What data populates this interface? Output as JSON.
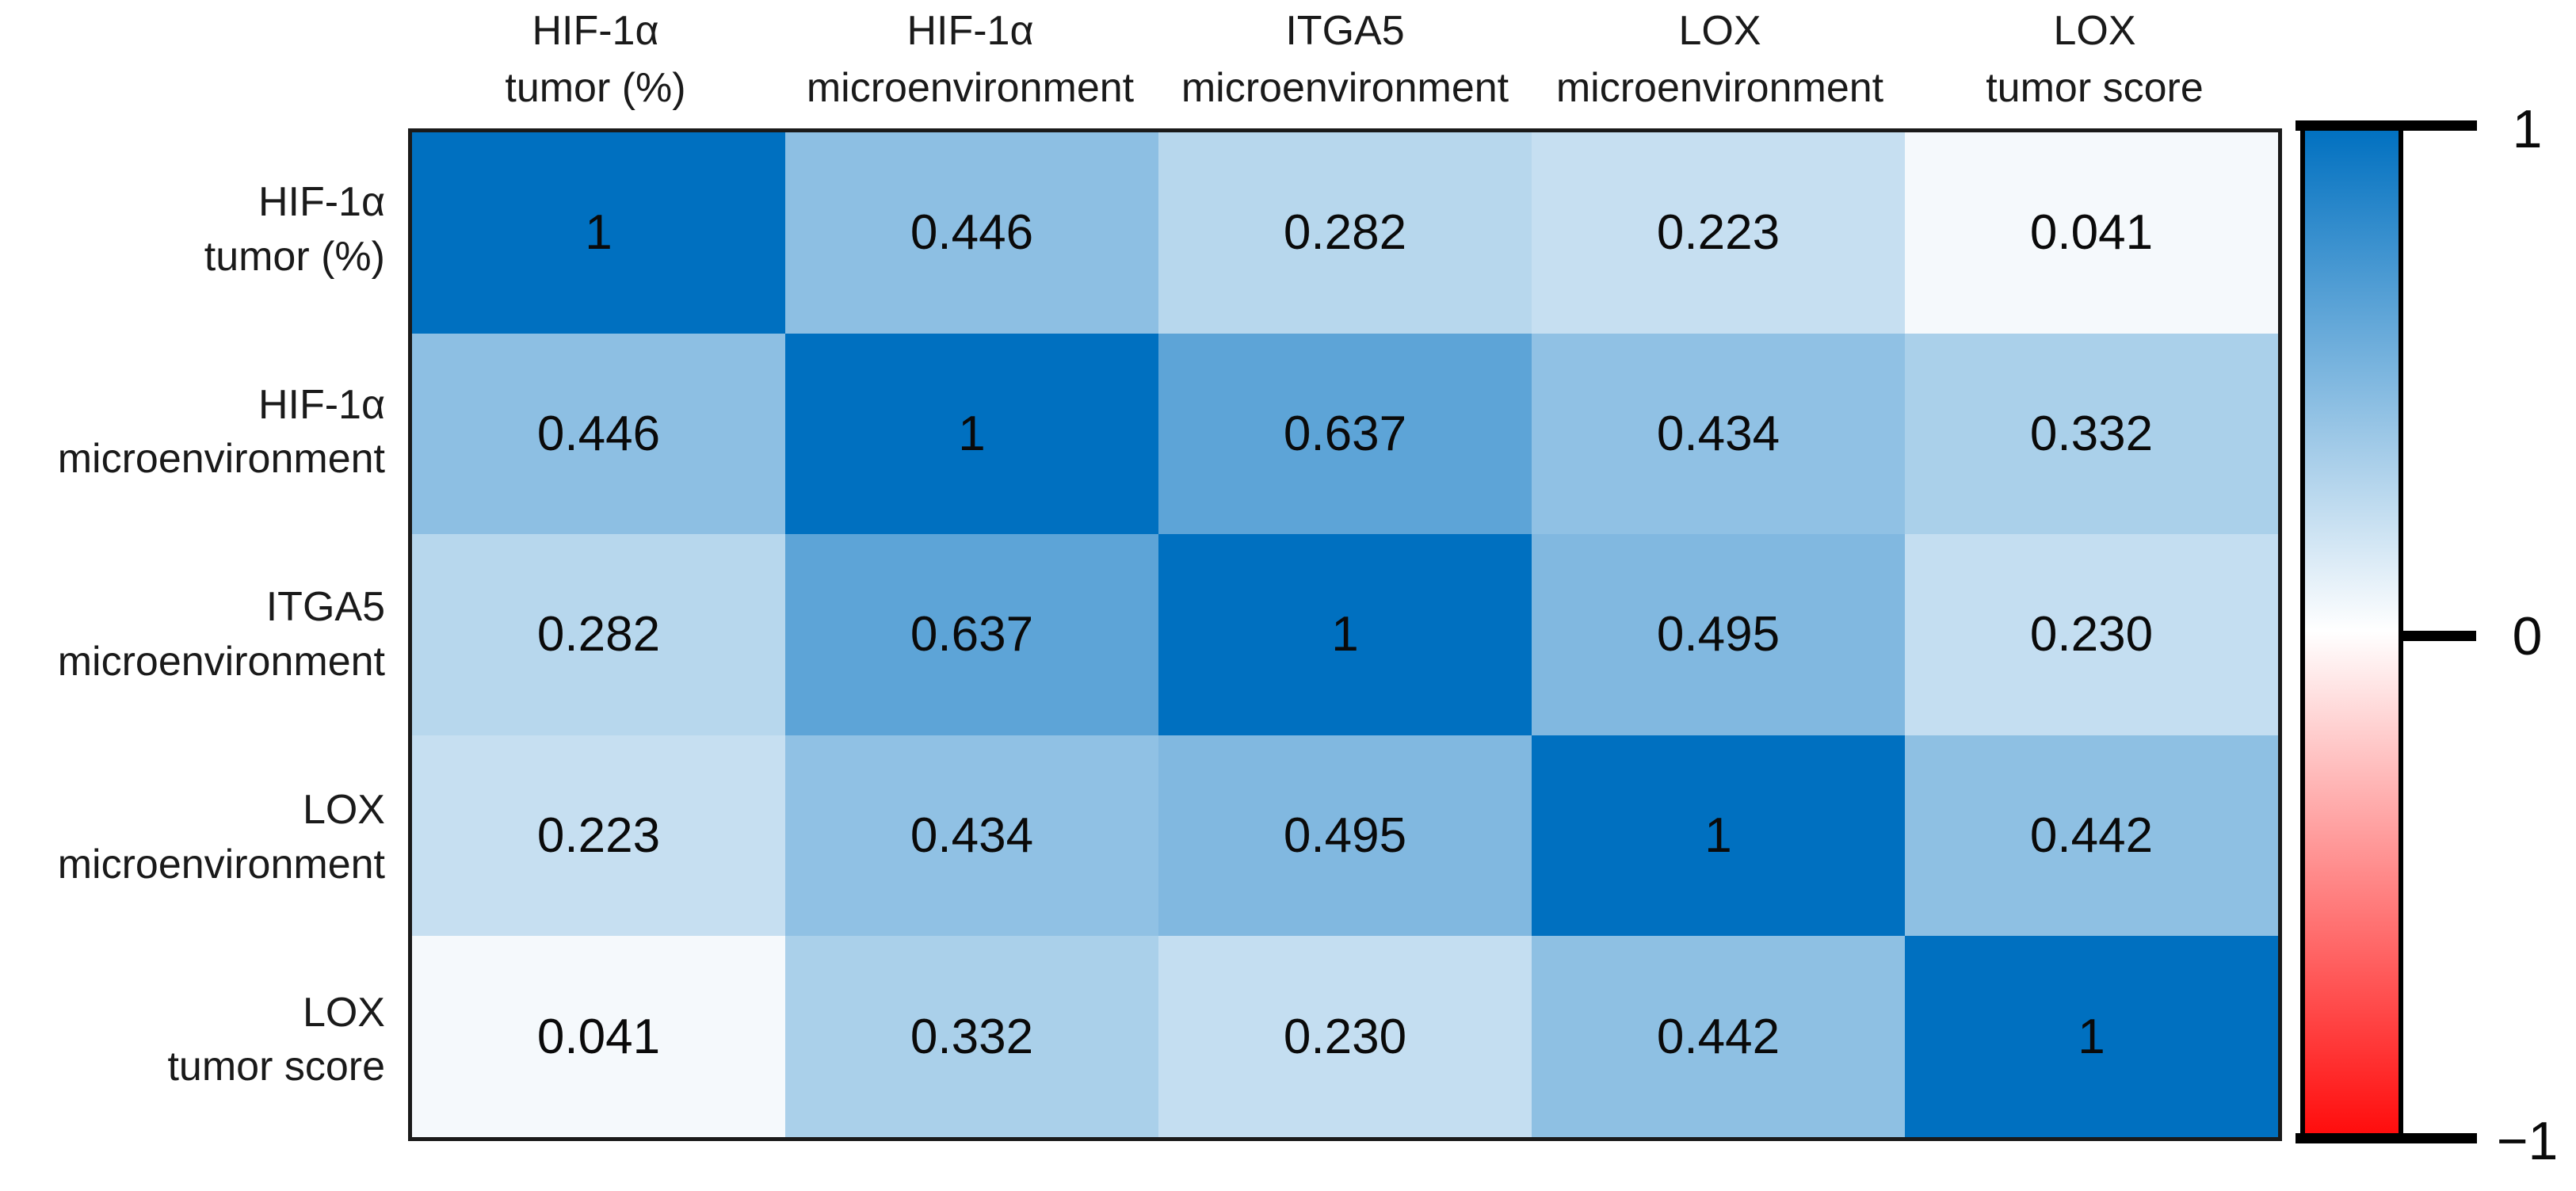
{
  "chart_data": {
    "type": "heatmap",
    "title": "",
    "description": "Correlation matrix heatmap, blue positive scale with diverging blue-white-red colorbar",
    "col_labels": [
      "HIF-1α\ntumor  (%)",
      "HIF-1α\nmicroenvironment",
      "ITGA5\nmicroenvironment",
      "LOX\nmicroenvironment",
      "LOX\ntumor score"
    ],
    "row_labels": [
      "HIF-1α\ntumor (%)",
      "HIF-1α\nmicroenvironment",
      "ITGA5\nmicroenvironment",
      "LOX\nmicroenvironment",
      "LOX\ntumor score"
    ],
    "values": [
      [
        1,
        0.446,
        0.282,
        0.223,
        0.041
      ],
      [
        0.446,
        1,
        0.637,
        0.434,
        0.332
      ],
      [
        0.282,
        0.637,
        1,
        0.495,
        0.23
      ],
      [
        0.223,
        0.434,
        0.495,
        1,
        0.442
      ],
      [
        0.041,
        0.332,
        0.23,
        0.442,
        1
      ]
    ],
    "cell_text": [
      [
        "1",
        "0.446",
        "0.282",
        "0.223",
        "0.041"
      ],
      [
        "0.446",
        "1",
        "0.637",
        "0.434",
        "0.332"
      ],
      [
        "0.282",
        "0.637",
        "1",
        "0.495",
        "0.230"
      ],
      [
        "0.223",
        "0.434",
        "0.495",
        "1",
        "0.442"
      ],
      [
        "0.041",
        "0.332",
        "0.230",
        "0.442",
        "1"
      ]
    ],
    "colorbar": {
      "range": [
        -1,
        1
      ],
      "ticks": {
        "max": "1",
        "mid": "0",
        "min": "−1"
      },
      "max_color": "#0070C0",
      "mid_color": "#FFFFFF",
      "min_color": "#FF0D0D"
    },
    "layout": {
      "grid": "off",
      "legend_position": "right-colorbar",
      "cell_text_color": "#0a0a0a",
      "border_color": "#1a1a1a"
    }
  }
}
